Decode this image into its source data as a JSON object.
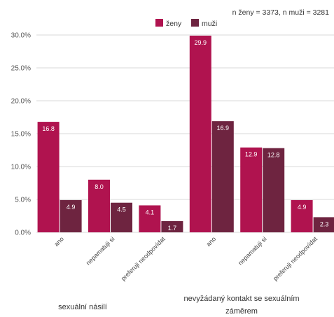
{
  "note": "n ženy = 3373, n muži = 3281",
  "chart_data": {
    "type": "bar",
    "categories": [
      "ano",
      "nepamatuji si",
      "preferuji neodpovídat",
      "ano",
      "nepamatuji si",
      "preferuji neodpovídat"
    ],
    "groups": [
      {
        "label": "sexuální násilí",
        "categories": [
          "ano",
          "nepamatuji si",
          "preferuji neodpovídat"
        ]
      },
      {
        "label_lines": [
          "nevyžádaný kontakt se sexuálním",
          "záměrem"
        ],
        "categories": [
          "ano",
          "nepamatuji si",
          "preferuji neodpovídat"
        ]
      }
    ],
    "series": [
      {
        "name": "ženy",
        "color": "#b0134f",
        "values": [
          16.8,
          8.0,
          4.1,
          29.9,
          12.9,
          4.9
        ],
        "labels": [
          "16.8",
          "8.0",
          "4.1",
          "29.9",
          "12.9",
          "4.9"
        ]
      },
      {
        "name": "muži",
        "color": "#6e2440",
        "values": [
          4.9,
          4.5,
          1.7,
          16.9,
          12.8,
          2.3
        ],
        "labels": [
          "4.9",
          "4.5",
          "1.7",
          "16.9",
          "12.8",
          "2.3"
        ]
      }
    ],
    "y_ticks": [
      "0.0%",
      "5.0%",
      "10.0%",
      "15.0%",
      "20.0%",
      "25.0%",
      "30.0%"
    ],
    "ylim": [
      0,
      30
    ],
    "grid": true,
    "legend": "top-center"
  }
}
